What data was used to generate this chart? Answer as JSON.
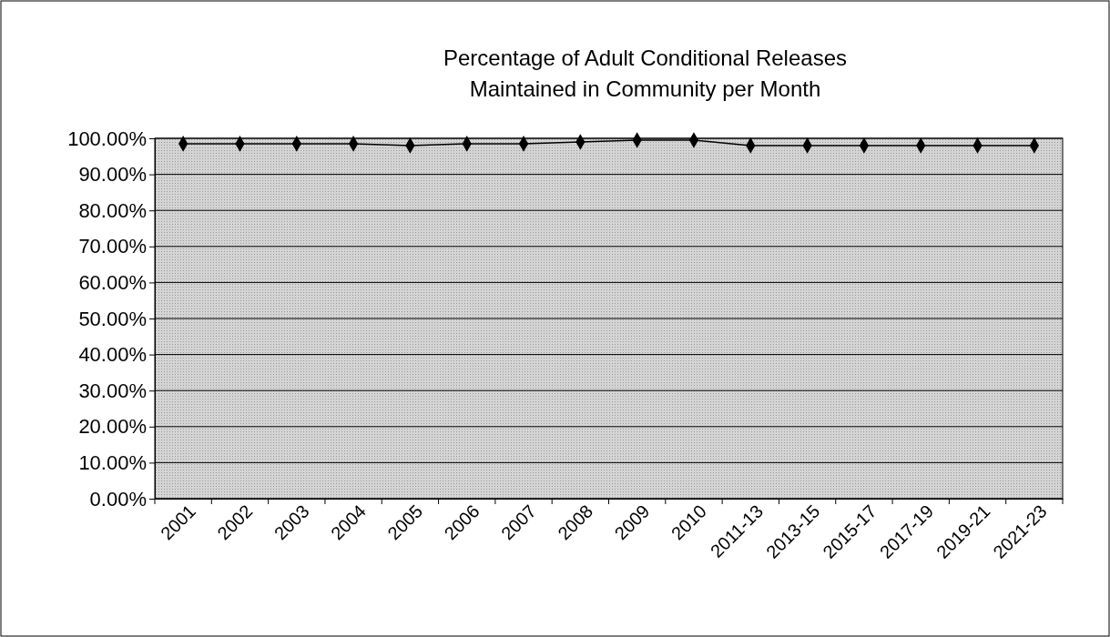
{
  "chart_data": {
    "type": "line",
    "title": "Percentage of Adult Conditional Releases\nMaintained in Community per Month",
    "categories": [
      "2001",
      "2002",
      "2003",
      "2004",
      "2005",
      "2006",
      "2007",
      "2008",
      "2009",
      "2010",
      "2011-13",
      "2013-15",
      "2015-17",
      "2017-19",
      "2019-21",
      "2021-23"
    ],
    "series": [
      {
        "color": "#000000",
        "values": [
          98.5,
          98.5,
          98.5,
          98.5,
          98,
          98.5,
          98.5,
          99,
          99.5,
          99.5,
          98,
          98,
          98,
          98,
          98,
          98
        ]
      }
    ],
    "ylim": [
      0,
      100
    ],
    "yticks": [
      {
        "value": 0,
        "label": "0.00%"
      },
      {
        "value": 10,
        "label": "10.00%"
      },
      {
        "value": 20,
        "label": "20.00%"
      },
      {
        "value": 30,
        "label": "30.00%"
      },
      {
        "value": 40,
        "label": "40.00%"
      },
      {
        "value": 50,
        "label": "50.00%"
      },
      {
        "value": 60,
        "label": "60.00%"
      },
      {
        "value": 70,
        "label": "70.00%"
      },
      {
        "value": 80,
        "label": "80.00%"
      },
      {
        "value": 90,
        "label": "90.00%"
      },
      {
        "value": 100,
        "label": "100.00%"
      }
    ],
    "grid": "y",
    "marker": "diamond"
  }
}
